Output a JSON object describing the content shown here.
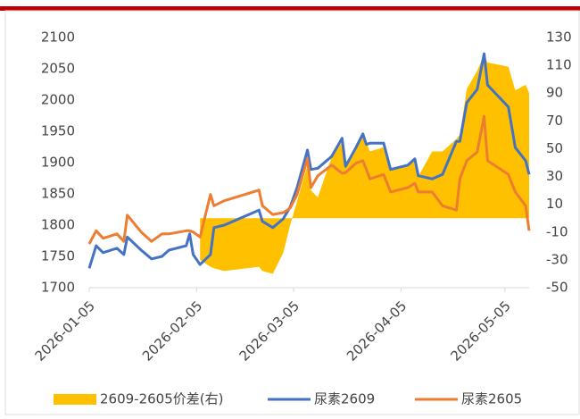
{
  "chart_data": {
    "type": "line",
    "x": [
      "2026-01-05",
      "2026-01-07",
      "2026-01-09",
      "2026-01-13",
      "2026-01-15",
      "2026-01-16",
      "2026-01-20",
      "2026-01-23",
      "2026-01-26",
      "2026-01-28",
      "2026-02-02",
      "2026-02-03",
      "2026-02-04",
      "2026-02-06",
      "2026-02-09",
      "2026-02-10",
      "2026-02-13",
      "2026-02-23",
      "2026-02-24",
      "2026-02-27",
      "2026-03-02",
      "2026-03-04",
      "2026-03-06",
      "2026-03-09",
      "2026-03-10",
      "2026-03-12",
      "2026-03-16",
      "2026-03-19",
      "2026-03-20",
      "2026-03-23",
      "2026-03-25",
      "2026-03-26",
      "2026-03-27",
      "2026-03-31",
      "2026-04-02",
      "2026-04-07",
      "2026-04-09",
      "2026-04-10",
      "2026-04-14",
      "2026-04-17",
      "2026-04-21",
      "2026-04-22",
      "2026-04-24",
      "2026-04-27",
      "2026-04-29",
      "2026-04-30",
      "2026-05-06",
      "2026-05-08",
      "2026-05-11",
      "2026-05-12"
    ],
    "series": [
      {
        "name": "2609-2605价差(右)",
        "type": "area",
        "axis": "y2",
        "color": "#FFC000",
        "values": [
          null,
          null,
          null,
          null,
          null,
          null,
          null,
          null,
          null,
          null,
          null,
          null,
          null,
          -30,
          -35,
          -36,
          -38,
          -35,
          -38,
          -40,
          -25,
          -5,
          12,
          38,
          20,
          15,
          44,
          55,
          40,
          50,
          60,
          55,
          48,
          51,
          35,
          38,
          41,
          30,
          48,
          48,
          57,
          60,
          93,
          106,
          118,
          112,
          109,
          92,
          96,
          90
        ]
      },
      {
        "name": "尿素2609",
        "color": "#4472C4",
        "values": [
          1731,
          1767,
          1756,
          1763,
          1753,
          1781,
          1760,
          1746,
          1750,
          1760,
          1767,
          1786,
          1753,
          1737,
          1753,
          1796,
          1800,
          1824,
          1806,
          1796,
          1810,
          1829,
          1860,
          1920,
          1889,
          1891,
          1910,
          1939,
          1894,
          1924,
          1946,
          1929,
          1931,
          1931,
          1889,
          1896,
          1906,
          1879,
          1874,
          1881,
          1934,
          1934,
          1996,
          2017,
          2074,
          2024,
          1989,
          1924,
          1903,
          1881
        ]
      },
      {
        "name": "尿素2605",
        "color": "#ED7D31",
        "values": [
          1770,
          1791,
          1779,
          1786,
          1774,
          1816,
          1789,
          1774,
          1786,
          1786,
          1791,
          1791,
          1789,
          1781,
          1849,
          1831,
          1839,
          1856,
          1831,
          1817,
          1820,
          1827,
          1849,
          1906,
          1860,
          1879,
          1896,
          1883,
          1884,
          1899,
          1903,
          1889,
          1874,
          1881,
          1853,
          1860,
          1867,
          1853,
          1853,
          1831,
          1824,
          1874,
          1903,
          1917,
          1974,
          1903,
          1881,
          1853,
          1831,
          1791
        ]
      }
    ],
    "xlim": [
      "2026-01-05",
      "2026-05-12"
    ],
    "xticks": [
      "2026-01-05",
      "2026-02-05",
      "2026-03-05",
      "2026-04-05",
      "2026-05-05"
    ],
    "ylim": [
      1700,
      2100
    ],
    "yticks": [
      1700,
      1750,
      1800,
      1850,
      1900,
      1950,
      2000,
      2050,
      2100
    ],
    "y2lim": [
      -50,
      130
    ],
    "y2ticks": [
      -50,
      -30,
      -10,
      10,
      30,
      50,
      70,
      90,
      110,
      130
    ],
    "legend": "bottom"
  }
}
